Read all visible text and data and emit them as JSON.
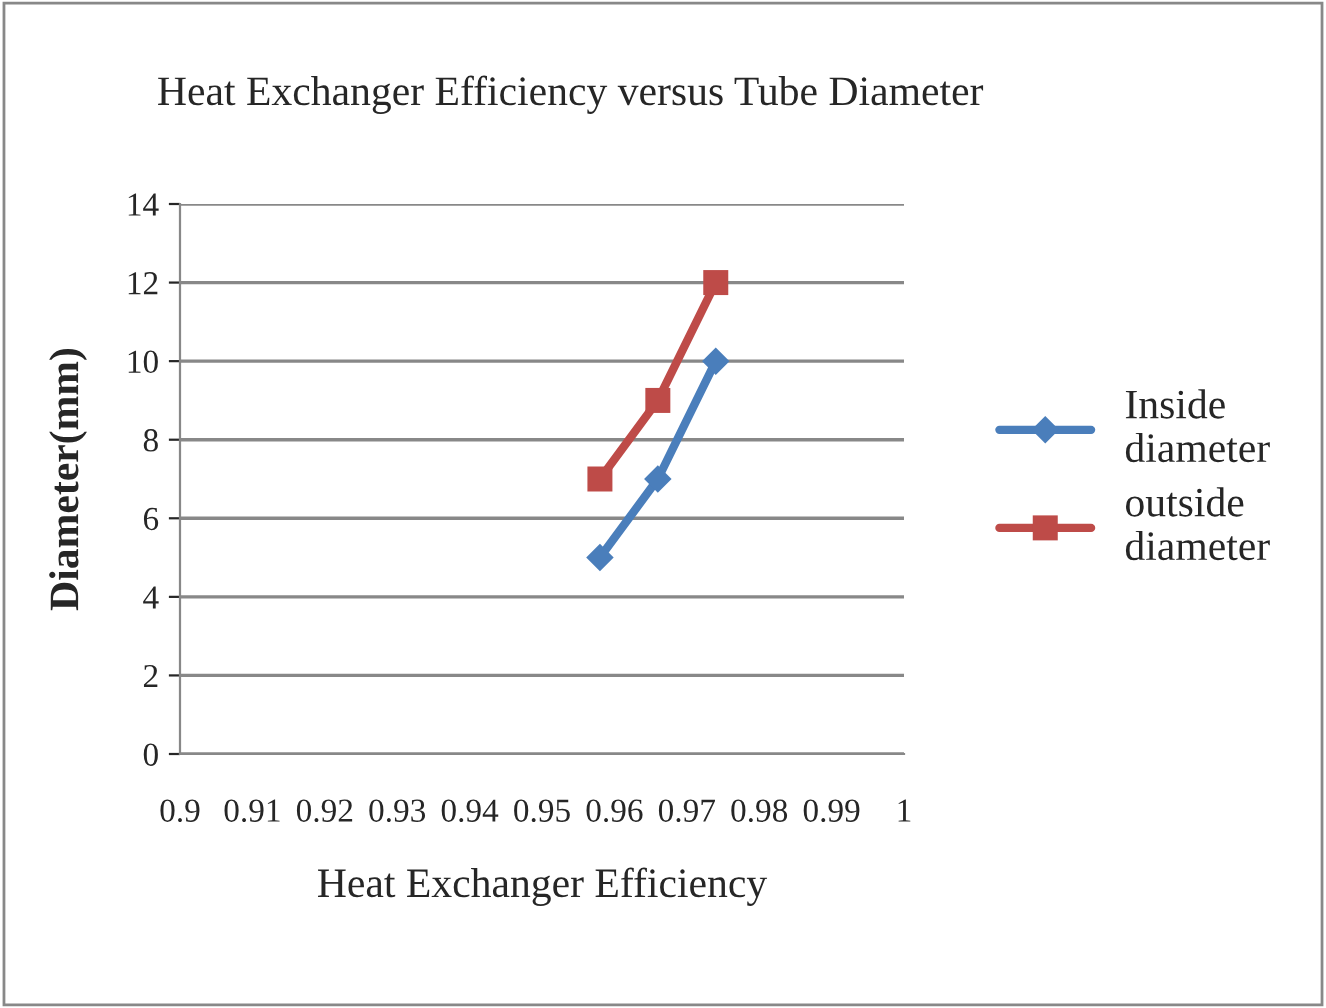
{
  "chart_data": {
    "type": "line",
    "title": "Heat Exchanger Efficiency versus Tube Diameter",
    "xlabel": "Heat Exchanger Efficiency",
    "ylabel": "Diameter(mm)",
    "series": [
      {
        "name": "Inside\ndiameter",
        "color": "#4a7ebb",
        "marker": "diamond",
        "x": [
          0.958,
          0.966,
          0.974
        ],
        "values": [
          5,
          7,
          10
        ]
      },
      {
        "name": "outside\ndiameter",
        "color": "#be4b48",
        "marker": "square",
        "x": [
          0.958,
          0.966,
          0.974
        ],
        "values": [
          7,
          9,
          12
        ]
      }
    ],
    "xlim": [
      0.9,
      1
    ],
    "xticks": [
      0.9,
      0.91,
      0.92,
      0.93,
      0.94,
      0.95,
      0.96,
      0.97,
      0.98,
      0.99,
      1
    ],
    "ylim": [
      0,
      14
    ],
    "yticks": [
      0,
      2,
      4,
      6,
      8,
      10,
      12,
      14
    ],
    "grid": "y",
    "legend": "right",
    "line_style": "solid"
  }
}
